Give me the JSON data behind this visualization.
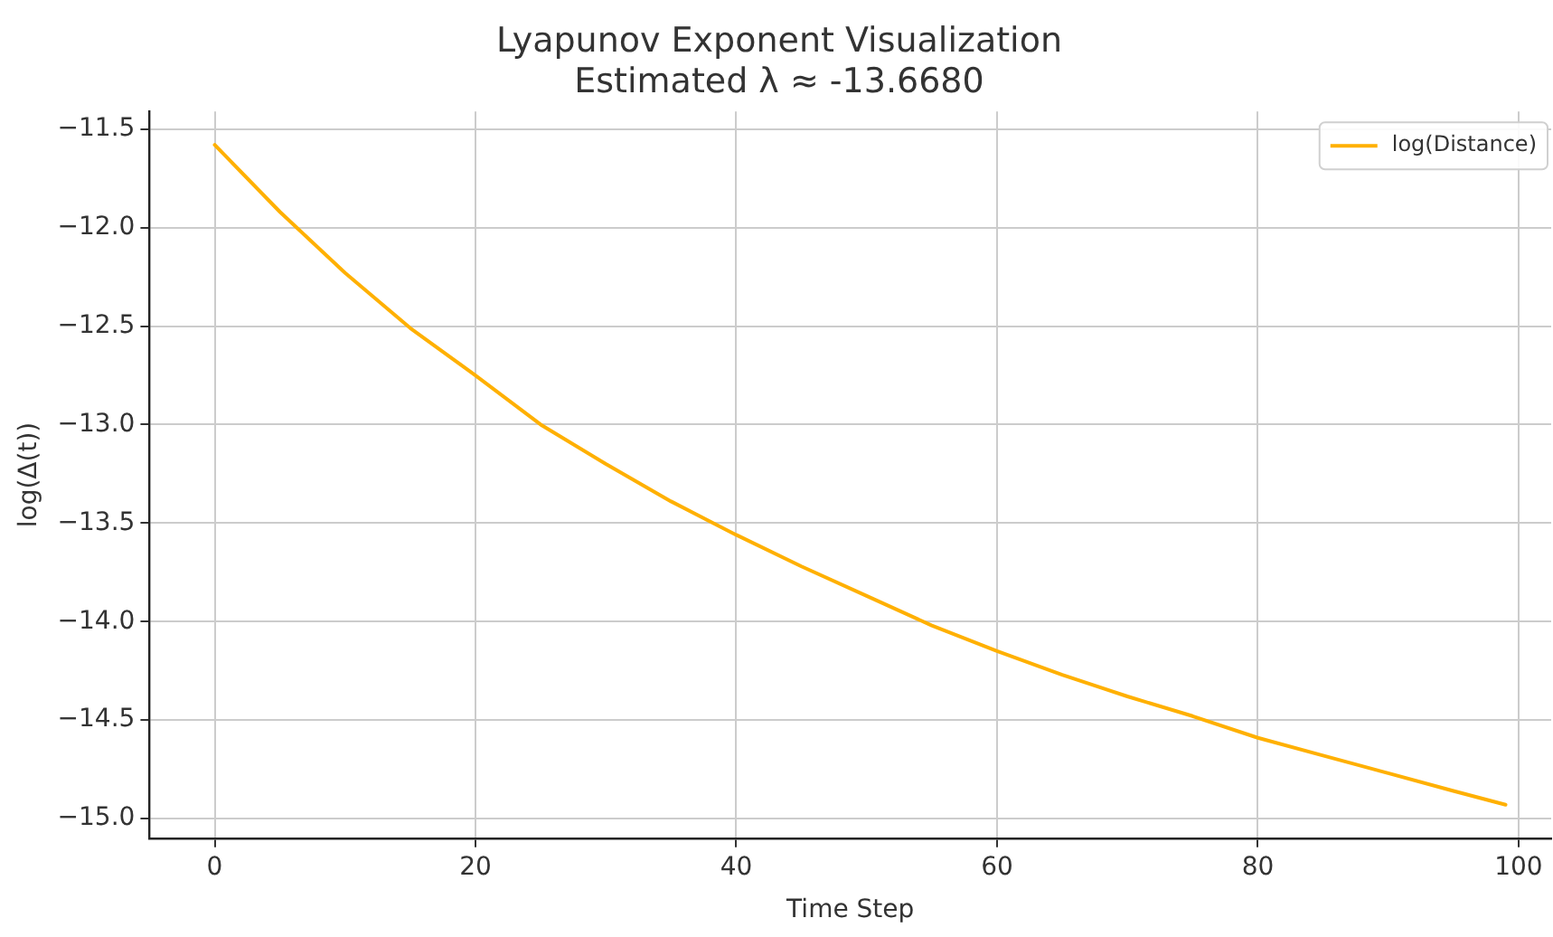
{
  "chart_data": {
    "type": "line",
    "title": "Lyapunov Exponent Visualization",
    "subtitle": "Estimated λ ≈ -13.6680",
    "xlabel": "Time Step",
    "ylabel": "log(Δ(t))",
    "x": [
      0,
      5,
      10,
      15,
      20,
      25,
      30,
      35,
      40,
      45,
      50,
      55,
      60,
      65,
      70,
      75,
      80,
      85,
      90,
      95,
      99
    ],
    "series": [
      {
        "name": "log(Distance)",
        "color": "#ffb000",
        "values": [
          -11.58,
          -11.92,
          -12.23,
          -12.51,
          -12.75,
          -13.0,
          -13.2,
          -13.39,
          -13.56,
          -13.72,
          -13.87,
          -14.02,
          -14.15,
          -14.27,
          -14.38,
          -14.48,
          -14.59,
          -14.68,
          -14.77,
          -14.86,
          -14.93
        ]
      }
    ],
    "xlim": [
      -5,
      102.5
    ],
    "ylim": [
      -15.1,
      -11.41
    ],
    "xticks": [
      0,
      20,
      40,
      60,
      80,
      100
    ],
    "yticks": [
      {
        "value": -15,
        "label": "−15.0"
      },
      {
        "value": -14.5,
        "label": "−14.5"
      },
      {
        "value": -14,
        "label": "−14.0"
      },
      {
        "value": -13.5,
        "label": "−13.5"
      },
      {
        "value": -13,
        "label": "−13.0"
      },
      {
        "value": -12.5,
        "label": "−12.5"
      },
      {
        "value": -12,
        "label": "−12.0"
      },
      {
        "value": -11.5,
        "label": "−11.5"
      }
    ],
    "grid": true,
    "legend": "top right",
    "marker": "none",
    "line_style": "solid"
  }
}
